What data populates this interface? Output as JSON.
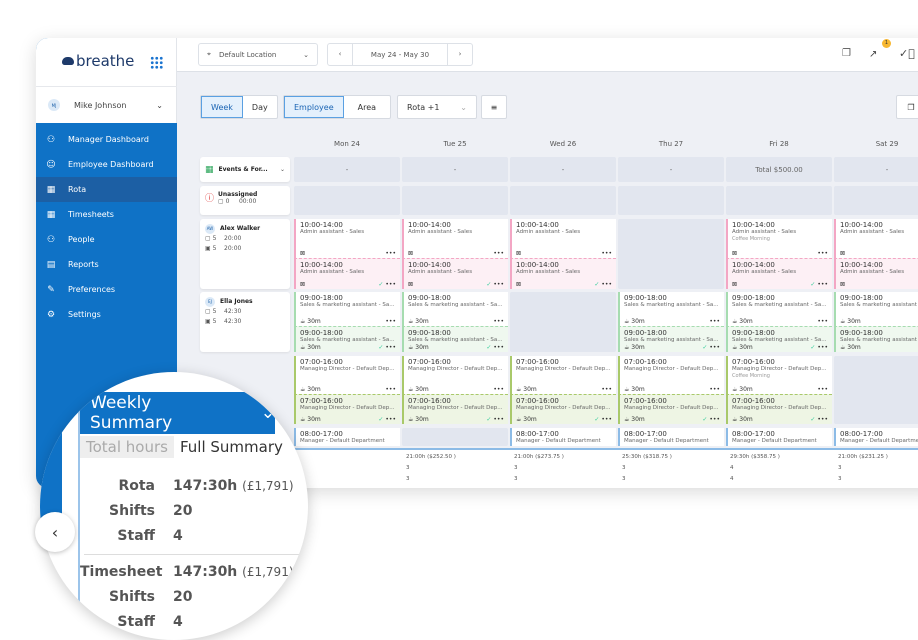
{
  "brand": "breathe",
  "user": {
    "initials": "MJ",
    "name": "Mike Johnson"
  },
  "sidebar": {
    "items": [
      {
        "label": "Manager Dashboard",
        "icon": "people-icon"
      },
      {
        "label": "Employee Dashboard",
        "icon": "person-icon"
      },
      {
        "label": "Rota",
        "icon": "calendar-icon",
        "active": true
      },
      {
        "label": "Timesheets",
        "icon": "calendar-icon"
      },
      {
        "label": "People",
        "icon": "people-icon"
      },
      {
        "label": "Reports",
        "icon": "document-icon"
      },
      {
        "label": "Preferences",
        "icon": "wrench-icon"
      },
      {
        "label": "Settings",
        "icon": "gear-icon"
      }
    ]
  },
  "topbar": {
    "location": "Default Location",
    "date_range": "May 24 - May 30",
    "notification_count": "1"
  },
  "toolbar": {
    "week": "Week",
    "day": "Day",
    "employee": "Employee",
    "area": "Area",
    "rota_filter": "Rota +1"
  },
  "days": [
    "Mon 24",
    "Tue 25",
    "Wed 26",
    "Thu 27",
    "Fri 28",
    "Sat 29"
  ],
  "events": {
    "label": "Events & For...",
    "values": [
      "-",
      "-",
      "-",
      "-",
      "Total $500.00",
      "-"
    ]
  },
  "unassigned": {
    "label": "Unassigned",
    "shifts": "0",
    "hours": "00:00"
  },
  "rows": [
    {
      "name": "Alex Walker",
      "initials": "AW",
      "rota_shifts": "5",
      "rota_hours": "20:00",
      "ts_shifts": "5",
      "ts_hours": "20:00",
      "color": "#f3a6c4",
      "tint": "#fdf0f5",
      "days": [
        {
          "time": "10:00-14:00",
          "role": "Admin assistant - Sales",
          "break": "",
          "ts_time": "10:00-14:00",
          "ts_role": "Admin assistant - Sales"
        },
        {
          "time": "10:00-14:00",
          "role": "Admin assistant - Sales",
          "break": "",
          "ts_time": "10:00-14:00",
          "ts_role": "Admin assistant - Sales"
        },
        {
          "time": "10:00-14:00",
          "role": "Admin assistant - Sales",
          "break": "",
          "ts_time": "10:00-14:00",
          "ts_role": "Admin assistant - Sales"
        },
        null,
        {
          "time": "10:00-14:00",
          "role": "Admin assistant - Sales",
          "note": "Coffee Morning",
          "break": "",
          "ts_time": "10:00-14:00",
          "ts_role": "Admin assistant - Sales"
        },
        {
          "time": "10:00-14:00",
          "role": "Admin assistant - Sales",
          "break": "",
          "ts_time": "10:00-14:00",
          "ts_role": "Admin assistant - Sales"
        }
      ]
    },
    {
      "name": "Ella Jones",
      "initials": "EJ",
      "rota_shifts": "5",
      "rota_hours": "42:30",
      "ts_shifts": "5",
      "ts_hours": "42:30",
      "color": "#a6dcb0",
      "tint": "#eff8ef",
      "days": [
        {
          "time": "09:00-18:00",
          "role": "Sales & marketing assistant - Sa...",
          "break": "30m",
          "ts_time": "09:00-18:00",
          "ts_role": "Sales & marketing assistant - Sa..."
        },
        {
          "time": "09:00-18:00",
          "role": "Sales & marketing assistant - Sa...",
          "break": "30m",
          "ts_time": "09:00-18:00",
          "ts_role": "Sales & marketing assistant - Sa..."
        },
        null,
        {
          "time": "09:00-18:00",
          "role": "Sales & marketing assistant - Sa...",
          "break": "30m",
          "ts_time": "09:00-18:00",
          "ts_role": "Sales & marketing assistant - Sa..."
        },
        {
          "time": "09:00-18:00",
          "role": "Sales & marketing assistant - Sa...",
          "break": "30m",
          "ts_time": "09:00-18:00",
          "ts_role": "Sales & marketing assistant - Sa..."
        },
        {
          "time": "09:00-18:00",
          "role": "Sales & marketing assistant - Sa...",
          "break": "30m",
          "ts_time": "09:00-18:00",
          "ts_role": "Sales & marketing assistant - Sa..."
        }
      ]
    },
    {
      "color": "#a9c96a",
      "tint": "#eef5e4",
      "days": [
        {
          "time": "07:00-16:00",
          "role": "Managing Director - Default Dep...",
          "break": "30m",
          "ts_time": "07:00-16:00",
          "ts_role": "Managing Director - Default Dep..."
        },
        {
          "time": "07:00-16:00",
          "role": "Managing Director - Default Dep...",
          "break": "30m",
          "ts_time": "07:00-16:00",
          "ts_role": "Managing Director - Default Dep..."
        },
        {
          "time": "07:00-16:00",
          "role": "Managing Director - Default Dep...",
          "break": "30m",
          "ts_time": "07:00-16:00",
          "ts_role": "Managing Director - Default Dep..."
        },
        {
          "time": "07:00-16:00",
          "role": "Managing Director - Default Dep...",
          "break": "30m",
          "ts_time": "07:00-16:00",
          "ts_role": "Managing Director - Default Dep..."
        },
        {
          "time": "07:00-16:00",
          "role": "Managing Director - Default Dep...",
          "note": "Coffee Morning",
          "break": "30m",
          "ts_time": "07:00-16:00",
          "ts_role": "Managing Director - Default Dep..."
        },
        null
      ]
    },
    {
      "color": "#8cbbe6",
      "tint": "#fff",
      "rota_only": true,
      "days": [
        {
          "time": "08:00-17:00",
          "role": "Manager - Default Department"
        },
        null,
        {
          "time": "08:00-17:00",
          "role": "Manager - Default Department"
        },
        {
          "time": "08:00-17:00",
          "role": "Manager - Default Department"
        },
        {
          "time": "08:00-17:00",
          "role": "Manager - Default Department"
        },
        {
          "time": "08:00-17:00",
          "role": "Manager - Default Department"
        }
      ]
    }
  ],
  "day_totals": [
    null,
    {
      "hours": "21:00h ($252.50 )",
      "shifts": "3",
      "staff": "3"
    },
    {
      "hours": "21:00h ($273.75 )",
      "shifts": "3",
      "staff": "3"
    },
    {
      "hours": "25:30h ($318.75 )",
      "shifts": "3",
      "staff": "3"
    },
    {
      "hours": "29:30h ($358.75 )",
      "shifts": "4",
      "staff": "4"
    },
    {
      "hours": "21:00h ($231.25 )",
      "shifts": "3",
      "staff": "3"
    }
  ],
  "weekly_summary": {
    "title": "Weekly Summary",
    "tabs": [
      "Total hours",
      "Full Summary"
    ],
    "active_tab": "Full Summary",
    "rota": {
      "label": "Rota",
      "hours": "147:30h",
      "cost": "(£1,791)",
      "shifts_label": "Shifts",
      "shifts": "20",
      "staff_label": "Staff",
      "staff": "4"
    },
    "timesheet": {
      "label": "Timesheet",
      "hours": "147:30h",
      "cost": "(£1,791)",
      "shifts_label": "Shifts",
      "shifts": "20",
      "staff_label": "Staff",
      "staff": "4"
    }
  },
  "colors": {
    "primary": "#0f72c6",
    "rota_active": "#1c5fa4",
    "badge": "#f7b731"
  }
}
